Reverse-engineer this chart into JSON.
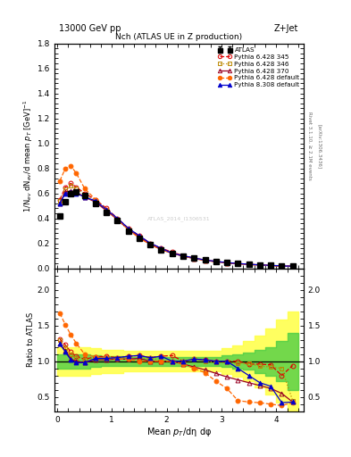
{
  "title_top": "13000 GeV pp",
  "title_right": "Z+Jet",
  "plot_title": "Nch (ATLAS UE in Z production)",
  "xlabel": "Mean $p_T$/dη dφ",
  "ylabel_main": "1/N$_{ev}$ dN$_{ev}$/d mean $p_T$ [GeV]$^{-1}$",
  "ylabel_ratio": "Ratio to ATLAS",
  "rivet_label": "Rivet 3.1.10, ≥ 2.1M events",
  "arxiv_label": "[arXiv:1306.3436]",
  "watermark": "ATLAS_2014_I1306531",
  "atlas_x": [
    0.05,
    0.15,
    0.25,
    0.35,
    0.5,
    0.7,
    0.9,
    1.1,
    1.3,
    1.5,
    1.7,
    1.9,
    2.1,
    2.3,
    2.5,
    2.7,
    2.9,
    3.1,
    3.3,
    3.5,
    3.7,
    3.9,
    4.1,
    4.3
  ],
  "atlas_y": [
    0.42,
    0.53,
    0.6,
    0.61,
    0.58,
    0.52,
    0.45,
    0.38,
    0.3,
    0.24,
    0.19,
    0.15,
    0.12,
    0.1,
    0.08,
    0.065,
    0.055,
    0.045,
    0.038,
    0.032,
    0.028,
    0.024,
    0.02,
    0.017
  ],
  "atlas_yerr": [
    0.015,
    0.015,
    0.015,
    0.015,
    0.012,
    0.01,
    0.008,
    0.007,
    0.006,
    0.005,
    0.004,
    0.003,
    0.003,
    0.002,
    0.002,
    0.002,
    0.002,
    0.002,
    0.002,
    0.002,
    0.001,
    0.001,
    0.001,
    0.001
  ],
  "py345_x": [
    0.05,
    0.15,
    0.25,
    0.35,
    0.5,
    0.7,
    0.9,
    1.1,
    1.3,
    1.5,
    1.7,
    1.9,
    2.1,
    2.3,
    2.5,
    2.7,
    2.9,
    3.1,
    3.3,
    3.5,
    3.7,
    3.9,
    4.1,
    4.3
  ],
  "py345_y": [
    0.55,
    0.65,
    0.68,
    0.65,
    0.6,
    0.55,
    0.48,
    0.4,
    0.32,
    0.26,
    0.2,
    0.16,
    0.13,
    0.1,
    0.082,
    0.066,
    0.055,
    0.045,
    0.038,
    0.032,
    0.027,
    0.023,
    0.019,
    0.016
  ],
  "py346_x": [
    0.05,
    0.15,
    0.25,
    0.35,
    0.5,
    0.7,
    0.9,
    1.1,
    1.3,
    1.5,
    1.7,
    1.9,
    2.1,
    2.3,
    2.5,
    2.7,
    2.9,
    3.1,
    3.3,
    3.5,
    3.7,
    3.9,
    4.1,
    4.3
  ],
  "py346_y": [
    0.54,
    0.63,
    0.66,
    0.64,
    0.59,
    0.54,
    0.47,
    0.39,
    0.31,
    0.25,
    0.2,
    0.15,
    0.12,
    0.1,
    0.082,
    0.065,
    0.054,
    0.044,
    0.037,
    0.031,
    0.026,
    0.022,
    0.018,
    0.015
  ],
  "py370_x": [
    0.05,
    0.15,
    0.25,
    0.35,
    0.5,
    0.7,
    0.9,
    1.1,
    1.3,
    1.5,
    1.7,
    1.9,
    2.1,
    2.3,
    2.5,
    2.7,
    2.9,
    3.1,
    3.3,
    3.5,
    3.7,
    3.9,
    4.1,
    4.3
  ],
  "py370_y": [
    0.52,
    0.61,
    0.62,
    0.61,
    0.57,
    0.53,
    0.46,
    0.39,
    0.31,
    0.25,
    0.19,
    0.15,
    0.12,
    0.096,
    0.078,
    0.063,
    0.052,
    0.042,
    0.036,
    0.03,
    0.025,
    0.021,
    0.018,
    0.015
  ],
  "pydef_x": [
    0.05,
    0.15,
    0.25,
    0.35,
    0.5,
    0.7,
    0.9,
    1.1,
    1.3,
    1.5,
    1.7,
    1.9,
    2.1,
    2.3,
    2.5,
    2.7,
    2.9,
    3.1,
    3.3,
    3.5,
    3.7,
    3.9,
    4.1,
    4.3
  ],
  "pydef_y": [
    0.7,
    0.8,
    0.82,
    0.76,
    0.64,
    0.55,
    0.47,
    0.39,
    0.31,
    0.24,
    0.19,
    0.15,
    0.12,
    0.096,
    0.078,
    0.063,
    0.052,
    0.042,
    0.036,
    0.03,
    0.025,
    0.021,
    0.018,
    0.015
  ],
  "py8def_x": [
    0.05,
    0.15,
    0.25,
    0.35,
    0.5,
    0.7,
    0.9,
    1.1,
    1.3,
    1.5,
    1.7,
    1.9,
    2.1,
    2.3,
    2.5,
    2.7,
    2.9,
    3.1,
    3.3,
    3.5,
    3.7,
    3.9,
    4.1,
    4.3
  ],
  "py8def_y": [
    0.52,
    0.6,
    0.61,
    0.6,
    0.57,
    0.54,
    0.47,
    0.4,
    0.32,
    0.26,
    0.2,
    0.16,
    0.12,
    0.1,
    0.082,
    0.066,
    0.055,
    0.045,
    0.038,
    0.032,
    0.027,
    0.023,
    0.019,
    0.016
  ],
  "ratio_345_y": [
    1.31,
    1.23,
    1.13,
    1.07,
    1.03,
    1.06,
    1.07,
    1.05,
    1.07,
    1.08,
    1.05,
    1.07,
    1.08,
    1.0,
    1.03,
    1.02,
    1.0,
    1.0,
    1.0,
    0.96,
    0.96,
    0.95,
    0.8,
    0.94
  ],
  "ratio_346_y": [
    1.29,
    1.19,
    1.1,
    1.05,
    1.02,
    1.04,
    1.04,
    1.03,
    1.03,
    1.04,
    1.05,
    1.0,
    1.0,
    1.0,
    1.03,
    1.0,
    0.98,
    0.98,
    0.97,
    0.97,
    0.93,
    0.92,
    0.9,
    0.45
  ],
  "ratio_370_y": [
    1.24,
    1.15,
    1.03,
    1.0,
    0.98,
    1.02,
    1.02,
    1.03,
    1.03,
    1.04,
    1.0,
    1.0,
    1.0,
    0.96,
    0.92,
    0.88,
    0.83,
    0.78,
    0.74,
    0.7,
    0.66,
    0.62,
    0.55,
    0.43
  ],
  "ratio_pydef_y": [
    1.67,
    1.51,
    1.37,
    1.25,
    1.1,
    1.06,
    1.04,
    1.03,
    1.03,
    1.0,
    1.0,
    1.0,
    1.0,
    0.96,
    0.9,
    0.84,
    0.72,
    0.62,
    0.45,
    0.43,
    0.42,
    0.4,
    0.38,
    0.42
  ],
  "ratio_py8def_y": [
    1.24,
    1.13,
    1.02,
    0.98,
    0.98,
    1.04,
    1.04,
    1.05,
    1.07,
    1.08,
    1.05,
    1.07,
    1.0,
    1.0,
    1.03,
    1.02,
    1.0,
    1.0,
    0.9,
    0.8,
    0.7,
    0.65,
    0.42,
    0.43
  ],
  "band_x_edges": [
    0.0,
    0.1,
    0.2,
    0.3,
    0.4,
    0.6,
    0.8,
    1.0,
    1.2,
    1.4,
    1.6,
    1.8,
    2.0,
    2.2,
    2.4,
    2.6,
    2.8,
    3.0,
    3.2,
    3.4,
    3.6,
    3.8,
    4.0,
    4.2,
    4.4
  ],
  "band_green_lo": [
    0.9,
    0.9,
    0.9,
    0.9,
    0.9,
    0.92,
    0.93,
    0.93,
    0.94,
    0.94,
    0.94,
    0.94,
    0.94,
    0.94,
    0.94,
    0.94,
    0.94,
    0.92,
    0.9,
    0.88,
    0.84,
    0.8,
    0.72,
    0.6
  ],
  "band_green_hi": [
    1.1,
    1.1,
    1.1,
    1.1,
    1.1,
    1.08,
    1.07,
    1.07,
    1.06,
    1.06,
    1.06,
    1.06,
    1.06,
    1.06,
    1.06,
    1.06,
    1.06,
    1.08,
    1.1,
    1.12,
    1.16,
    1.2,
    1.28,
    1.4
  ],
  "band_yellow_lo": [
    0.8,
    0.8,
    0.8,
    0.8,
    0.8,
    0.82,
    0.84,
    0.84,
    0.86,
    0.86,
    0.86,
    0.86,
    0.86,
    0.86,
    0.86,
    0.86,
    0.86,
    0.82,
    0.78,
    0.72,
    0.64,
    0.54,
    0.42,
    0.3
  ],
  "band_yellow_hi": [
    1.2,
    1.2,
    1.2,
    1.2,
    1.2,
    1.18,
    1.16,
    1.16,
    1.14,
    1.14,
    1.14,
    1.14,
    1.14,
    1.14,
    1.14,
    1.14,
    1.14,
    1.18,
    1.22,
    1.28,
    1.36,
    1.46,
    1.58,
    1.7
  ],
  "color_atlas": "#000000",
  "color_345": "#dd0000",
  "color_346": "#bb8800",
  "color_370": "#990022",
  "color_pydef": "#ff6600",
  "color_py8def": "#0000cc",
  "band_yellow": "#ffff44",
  "band_green": "#44cc44",
  "ylim_main": [
    0.0,
    1.8
  ],
  "ylim_ratio": [
    0.3,
    2.3
  ],
  "xlim": [
    -0.05,
    4.5
  ],
  "main_yticks": [
    0.0,
    0.2,
    0.4,
    0.6,
    0.8,
    1.0,
    1.2,
    1.4,
    1.6,
    1.8
  ],
  "ratio_yticks": [
    0.5,
    1.0,
    1.5,
    2.0
  ]
}
